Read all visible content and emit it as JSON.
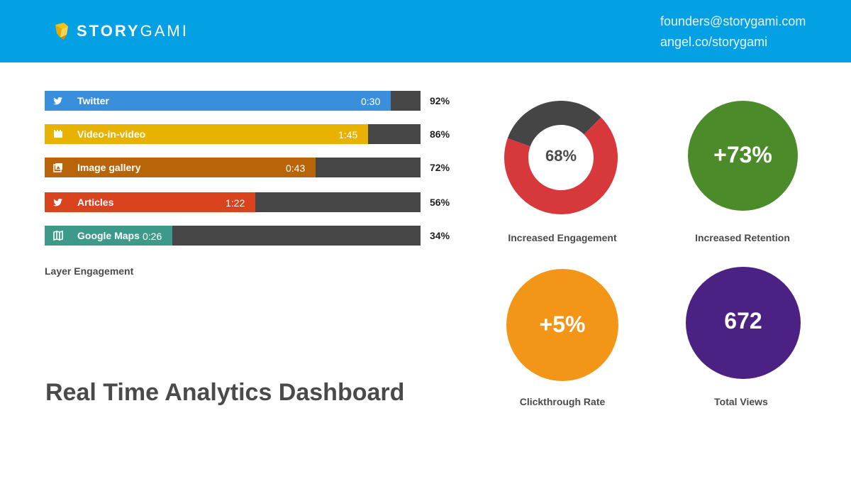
{
  "header": {
    "brand_bold": "STORY",
    "brand_light": "GAMI",
    "email": "founders@storygami.com",
    "url": "angel.co/storygami",
    "color": "#03a0e3"
  },
  "page_title": "Real Time Analytics Dashboard",
  "chart_data": [
    {
      "type": "bar",
      "orientation": "horizontal",
      "title": "Layer Engagement",
      "categories": [
        "Twitter",
        "Video-in-video",
        "Image gallery",
        "Articles",
        "Google Maps"
      ],
      "values": [
        92,
        86,
        72,
        56,
        34
      ],
      "value_labels": [
        "92%",
        "86%",
        "72%",
        "56%",
        "34%"
      ],
      "times": [
        "0:30",
        "1:45",
        "0:43",
        "1:22",
        "0:26"
      ],
      "icons": [
        "twitter-icon",
        "video-icon",
        "image-icon",
        "twitter-icon",
        "map-icon"
      ],
      "colors": [
        "#3a8fdc",
        "#e8b300",
        "#b8650a",
        "#d9431e",
        "#3d9a8b"
      ],
      "track_color": "#464646",
      "xlim": [
        0,
        100
      ]
    },
    {
      "type": "pie",
      "title": "Increased Engagement",
      "value": 68,
      "value_label": "68%",
      "colors": [
        "#d6383c",
        "#454545"
      ]
    }
  ],
  "stats": [
    {
      "label": "Increased Retention",
      "value": "+73%",
      "color": "#4b8b29"
    },
    {
      "label": "Clickthrough Rate",
      "value": "+5%",
      "color": "#f39617"
    },
    {
      "label": "Total Views",
      "value": "672",
      "color": "#4b2283"
    }
  ]
}
